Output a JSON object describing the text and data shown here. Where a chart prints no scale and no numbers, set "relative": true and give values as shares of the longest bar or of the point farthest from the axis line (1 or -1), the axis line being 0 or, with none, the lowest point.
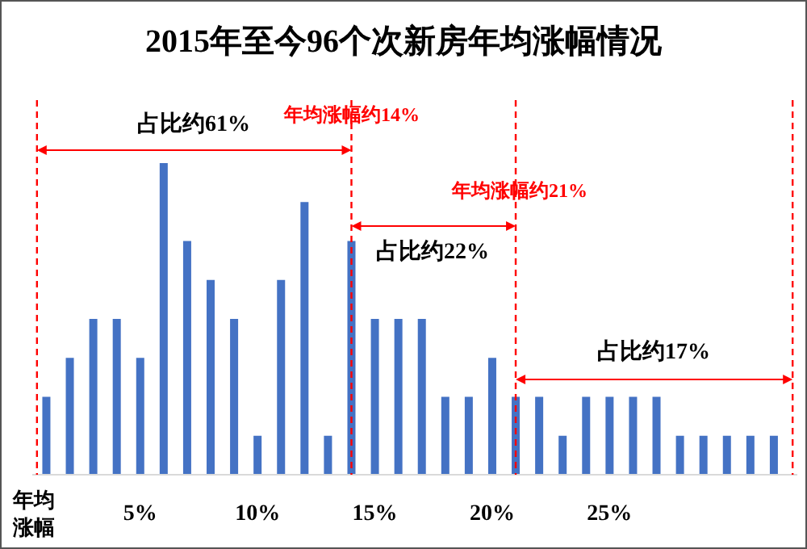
{
  "chart_data": {
    "type": "bar",
    "title": "2015年至今96个次新房年均涨幅情况",
    "xlabel": "年均涨幅",
    "relative": true,
    "color": "#4472c4",
    "x": [
      1,
      2,
      3,
      4,
      5,
      6,
      7,
      8,
      9,
      10,
      11,
      12,
      13,
      14,
      15,
      16,
      17,
      18,
      19,
      20,
      21,
      22,
      23,
      24,
      25,
      26,
      27,
      28,
      29,
      30,
      31,
      32
    ],
    "values": [
      0.25,
      0.375,
      0.5,
      0.5,
      0.375,
      1,
      0.75,
      0.625,
      0.5,
      0.125,
      0.625,
      0.875,
      0.125,
      0.75,
      0.5,
      0.5,
      0.5,
      0.25,
      0.25,
      0.375,
      0.25,
      0.25,
      0.125,
      0.25,
      0.25,
      0.25,
      0.25,
      0.125,
      0.125,
      0.125,
      0.125,
      0.125
    ],
    "xlim": [
      0.4,
      33
    ],
    "xticks": [
      {
        "value": 5,
        "label": "5%"
      },
      {
        "value": 10,
        "label": "10%"
      },
      {
        "value": 15,
        "label": "15%"
      },
      {
        "value": 20,
        "label": "20%"
      },
      {
        "value": 25,
        "label": "25%"
      }
    ],
    "ref_lines": [
      {
        "axis": "x",
        "value": 0.6,
        "color": "#ff0000",
        "line_style": "dashed"
      },
      {
        "axis": "x",
        "value": 14,
        "color": "#ff0000",
        "line_style": "dashed"
      },
      {
        "axis": "x",
        "value": 21,
        "color": "#ff0000",
        "line_style": "dashed"
      },
      {
        "axis": "x",
        "value": 32.8,
        "color": "#ff0000",
        "line_style": "dashed"
      }
    ],
    "annotations": [
      "占比约61%",
      "年均涨幅约14%",
      "占比约22%",
      "年均涨幅约21%",
      "占比约17%"
    ]
  }
}
